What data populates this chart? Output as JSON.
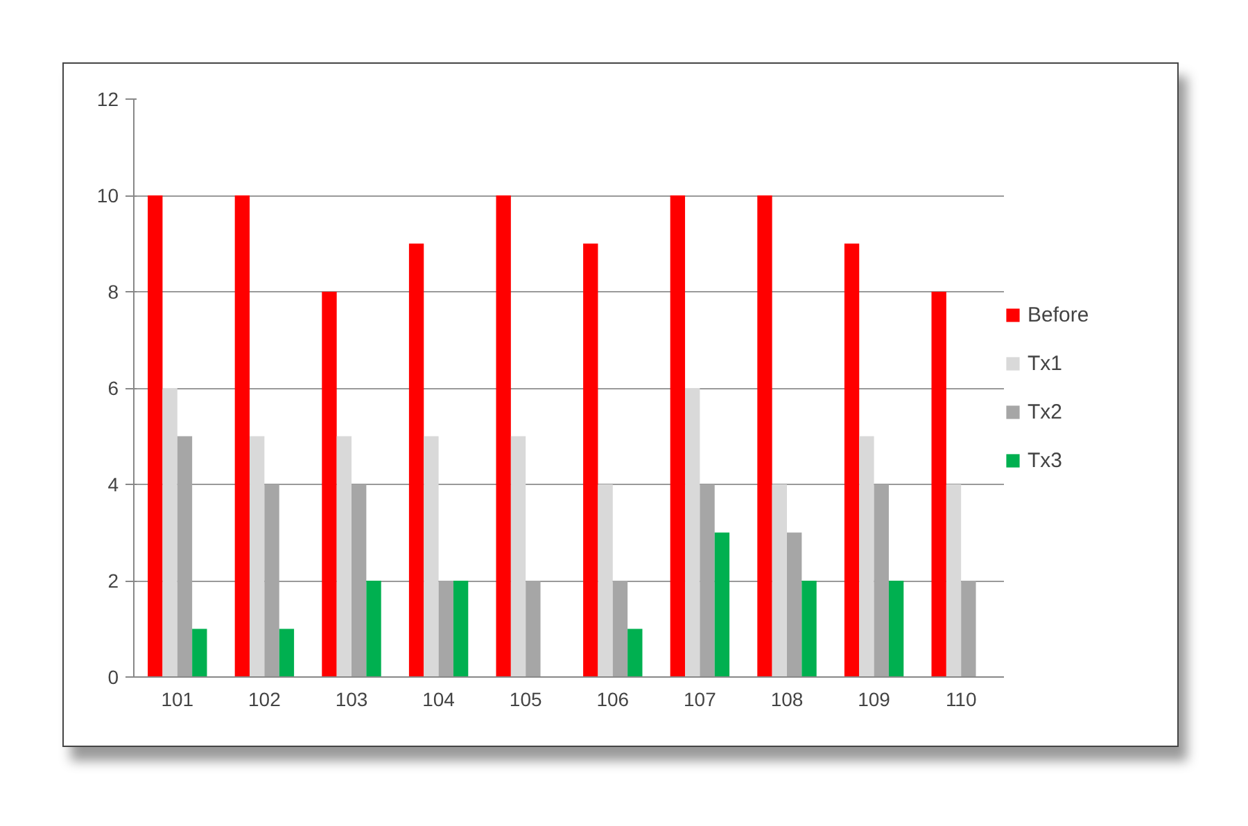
{
  "chart_data": {
    "type": "bar",
    "categories": [
      "101",
      "102",
      "103",
      "104",
      "105",
      "106",
      "107",
      "108",
      "109",
      "110"
    ],
    "series": [
      {
        "name": "Before",
        "color": "#ff0000",
        "values": [
          10,
          10,
          8,
          9,
          10,
          9,
          10,
          10,
          9,
          8
        ]
      },
      {
        "name": "Tx1",
        "color": "#d9d9d9",
        "values": [
          6,
          5,
          5,
          5,
          5,
          4,
          6,
          4,
          5,
          4
        ]
      },
      {
        "name": "Tx2",
        "color": "#a6a6a6",
        "values": [
          5,
          4,
          4,
          2,
          2,
          2,
          4,
          3,
          4,
          2
        ]
      },
      {
        "name": "Tx3",
        "color": "#00b050",
        "values": [
          1,
          1,
          2,
          2,
          0,
          1,
          3,
          2,
          2,
          0
        ]
      }
    ],
    "ylim": [
      0,
      12
    ],
    "yticks": [
      0,
      2,
      4,
      6,
      8,
      10,
      12
    ],
    "grid": "y",
    "legend": "right"
  }
}
